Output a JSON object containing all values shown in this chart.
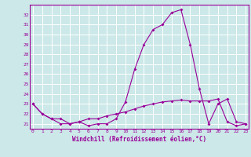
{
  "x": [
    0,
    1,
    2,
    3,
    4,
    5,
    6,
    7,
    8,
    9,
    10,
    11,
    12,
    13,
    14,
    15,
    16,
    17,
    18,
    19,
    20,
    21,
    22,
    23
  ],
  "line1": [
    23,
    22,
    21.5,
    21,
    21,
    21.2,
    20.8,
    21,
    21,
    21.5,
    23.2,
    26.5,
    29,
    30.5,
    31.0,
    32.2,
    32.5,
    29.0,
    24.5,
    21.0,
    23.0,
    23.5,
    21.2,
    21.0
  ],
  "line2": [
    23,
    22,
    21.5,
    21.5,
    21,
    21.2,
    21.5,
    21.5,
    21.8,
    22.0,
    22.2,
    22.5,
    22.8,
    23.0,
    23.2,
    23.3,
    23.4,
    23.3,
    23.3,
    23.3,
    23.5,
    21.2,
    20.8,
    21.0
  ],
  "color": "#990099",
  "bg_color": "#cce8e8",
  "grid_color": "#ffffff",
  "yticks": [
    21,
    22,
    23,
    24,
    25,
    26,
    27,
    28,
    29,
    30,
    31,
    32
  ],
  "xticks": [
    0,
    1,
    2,
    3,
    4,
    5,
    6,
    7,
    8,
    9,
    10,
    11,
    12,
    13,
    14,
    15,
    16,
    17,
    18,
    19,
    20,
    21,
    22,
    23
  ],
  "xlabel": "Windchill (Refroidissement éolien,°C)",
  "ylim_min": 20.5,
  "ylim_max": 33.0,
  "xlim_min": -0.3,
  "xlim_max": 23.3
}
